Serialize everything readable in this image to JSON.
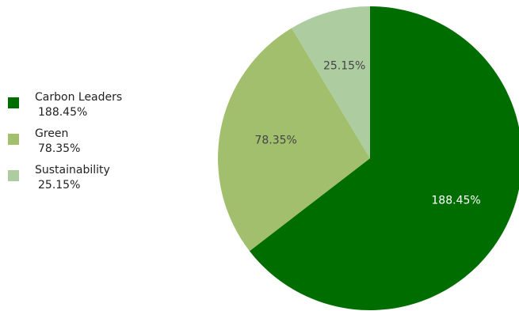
{
  "chart_data": {
    "type": "pie",
    "title": "",
    "legend_position": "left",
    "series": [
      {
        "name": "Carbon Leaders",
        "value": 188.45,
        "label": "188.45%",
        "color": "#006d00",
        "label_color": "#ffffff"
      },
      {
        "name": "Green",
        "value": 78.35,
        "label": "78.35%",
        "color": "#a2bf6e",
        "label_color": "#444444"
      },
      {
        "name": "Sustainability",
        "value": 25.15,
        "label": "25.15%",
        "color": "#adcda1",
        "label_color": "#444444"
      }
    ]
  }
}
